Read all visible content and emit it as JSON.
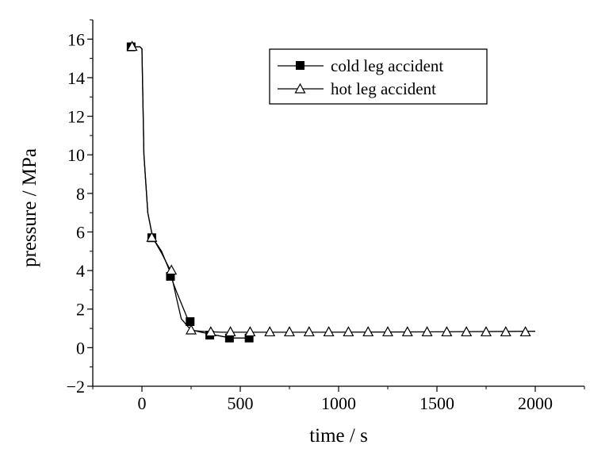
{
  "chart_data": {
    "type": "line",
    "title": "",
    "xlabel": "time / s",
    "ylabel": "pressure / MPa",
    "xlim": [
      -250,
      2250
    ],
    "ylim": [
      -2,
      17
    ],
    "xticks": [
      0,
      500,
      1000,
      1500,
      2000
    ],
    "xtick_labels": [
      "0",
      "500",
      "1000",
      "1500",
      "2000"
    ],
    "yticks": [
      -2,
      0,
      2,
      4,
      6,
      8,
      10,
      12,
      14,
      16
    ],
    "ytick_labels": [
      "−2",
      "0",
      "2",
      "4",
      "6",
      "8",
      "10",
      "12",
      "14",
      "16"
    ],
    "grid": false,
    "legend_position": "top-right",
    "series": [
      {
        "name": "cold leg accident",
        "marker": "filled-square",
        "color": "#000000",
        "line": [
          [
            -60,
            15.6
          ],
          [
            -10,
            15.6
          ],
          [
            0,
            15.5
          ],
          [
            10,
            10.0
          ],
          [
            30,
            7.0
          ],
          [
            55,
            5.7
          ],
          [
            100,
            5.0
          ],
          [
            140,
            4.0
          ],
          [
            150,
            3.6
          ],
          [
            180,
            2.8
          ],
          [
            220,
            1.8
          ],
          [
            240,
            1.3
          ],
          [
            260,
            0.9
          ],
          [
            300,
            0.8
          ],
          [
            350,
            0.7
          ],
          [
            450,
            0.5
          ],
          [
            550,
            0.5
          ],
          [
            565,
            0.5
          ]
        ],
        "points": [
          [
            -55,
            15.6
          ],
          [
            50,
            5.7
          ],
          [
            145,
            3.7
          ],
          [
            245,
            1.35
          ],
          [
            345,
            0.65
          ],
          [
            445,
            0.5
          ],
          [
            545,
            0.5
          ]
        ]
      },
      {
        "name": "hot leg accident",
        "marker": "open-triangle",
        "color": "#000000",
        "line": [
          [
            -60,
            15.6
          ],
          [
            -10,
            15.6
          ],
          [
            0,
            15.5
          ],
          [
            10,
            10.0
          ],
          [
            30,
            7.0
          ],
          [
            55,
            5.7
          ],
          [
            100,
            4.9
          ],
          [
            145,
            4.0
          ],
          [
            175,
            2.6
          ],
          [
            200,
            1.5
          ],
          [
            250,
            0.9
          ],
          [
            300,
            0.85
          ],
          [
            400,
            0.8
          ],
          [
            600,
            0.8
          ],
          [
            900,
            0.8
          ],
          [
            1500,
            0.82
          ],
          [
            2000,
            0.85
          ]
        ],
        "points": [
          [
            -50,
            15.6
          ],
          [
            50,
            5.7
          ],
          [
            150,
            4.0
          ],
          [
            250,
            0.9
          ],
          [
            350,
            0.8
          ],
          [
            450,
            0.8
          ],
          [
            550,
            0.8
          ],
          [
            650,
            0.8
          ],
          [
            750,
            0.8
          ],
          [
            850,
            0.8
          ],
          [
            950,
            0.8
          ],
          [
            1050,
            0.8
          ],
          [
            1150,
            0.8
          ],
          [
            1250,
            0.8
          ],
          [
            1350,
            0.8
          ],
          [
            1450,
            0.8
          ],
          [
            1550,
            0.8
          ],
          [
            1650,
            0.8
          ],
          [
            1750,
            0.8
          ],
          [
            1850,
            0.8
          ],
          [
            1950,
            0.8
          ]
        ]
      }
    ]
  }
}
